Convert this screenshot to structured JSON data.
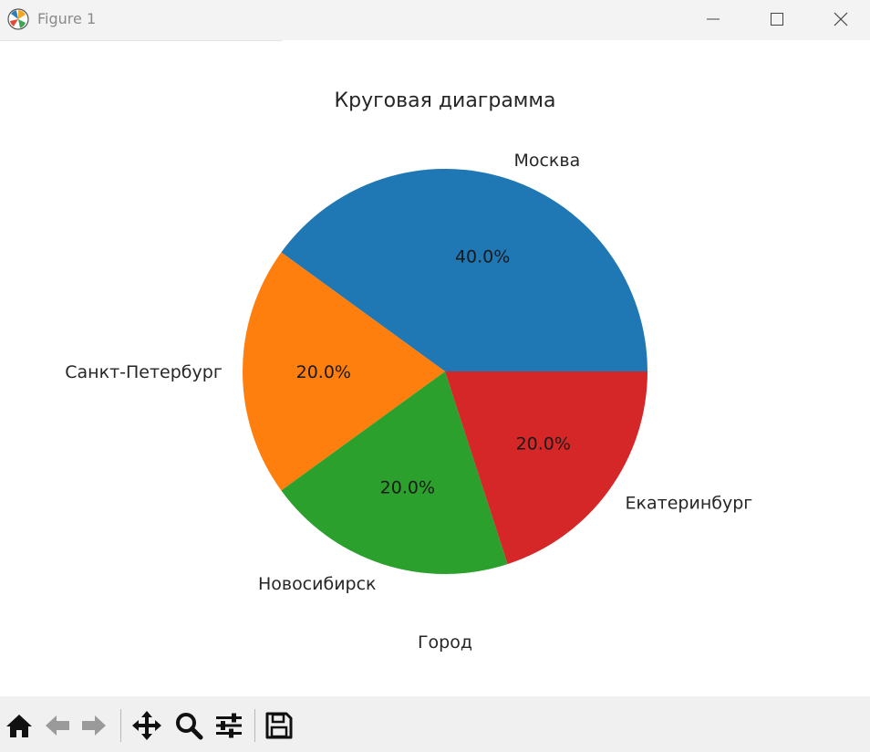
{
  "window": {
    "title": "Figure 1",
    "icons": {
      "app": "matplotlib-icon",
      "minimize": "minimize-icon",
      "maximize": "maximize-icon",
      "close": "close-icon"
    }
  },
  "toolbar": {
    "buttons": [
      {
        "name": "home-icon"
      },
      {
        "name": "back-arrow-icon"
      },
      {
        "name": "forward-arrow-icon"
      },
      {
        "name": "pan-icon"
      },
      {
        "name": "zoom-icon"
      },
      {
        "name": "configure-subplots-icon"
      },
      {
        "name": "save-icon"
      }
    ]
  },
  "chart_data": {
    "type": "pie",
    "title": "Круговая диаграмма",
    "xlabel": "Город",
    "labels": [
      "Москва",
      "Санкт-Петербург",
      "Новосибирск",
      "Екатеринбург"
    ],
    "values": [
      40,
      20,
      20,
      20
    ],
    "autopct": [
      "40.0%",
      "20.0%",
      "20.0%",
      "20.0%"
    ],
    "colors": [
      "#1f77b4",
      "#ff7f0e",
      "#2ca02c",
      "#d62728"
    ],
    "startangle": 0,
    "direction": "counterclockwise"
  }
}
